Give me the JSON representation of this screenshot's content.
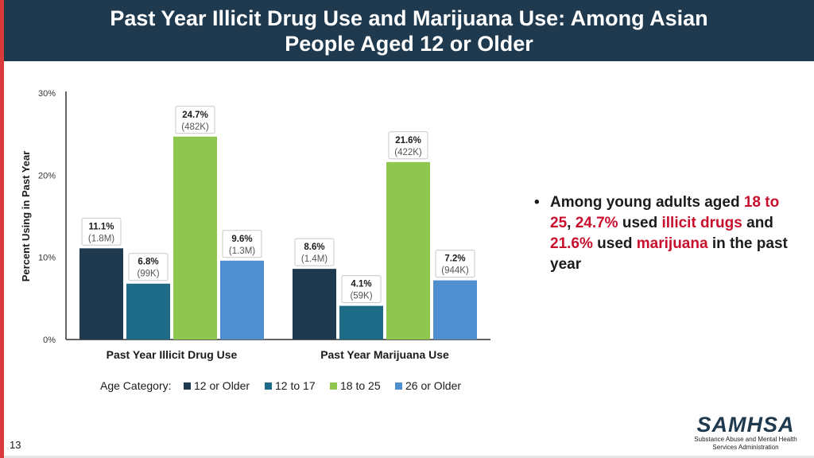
{
  "slide": {
    "title": "Past Year Illicit Drug Use and Marijuana Use: Among Asian People Aged 12 or Older",
    "page_number": "13",
    "logo": {
      "word": "SAMHSA",
      "subtitle": "Substance Abuse and Mental Health Services Administration"
    },
    "bullet": {
      "parts": [
        {
          "text": "Among young adults aged ",
          "highlight": false
        },
        {
          "text": "18 to 25",
          "highlight": true
        },
        {
          "text": ", ",
          "highlight": false
        },
        {
          "text": "24.7%",
          "highlight": true
        },
        {
          "text": " used ",
          "highlight": false
        },
        {
          "text": "illicit drugs",
          "highlight": true
        },
        {
          "text": " and ",
          "highlight": false
        },
        {
          "text": "21.6%",
          "highlight": true
        },
        {
          "text": " used ",
          "highlight": false
        },
        {
          "text": "marijuana",
          "highlight": true
        },
        {
          "text": " in the past year",
          "highlight": false
        }
      ]
    },
    "colors": {
      "header_bg": "#1f3a4f",
      "highlight": "#c8102e",
      "accent": "#d93a3a"
    }
  },
  "chart_data": {
    "type": "bar",
    "title": "",
    "ylabel": "Percent Using in Past Year",
    "ylim": [
      0,
      30
    ],
    "yticks": [
      0,
      10,
      20,
      30
    ],
    "ytick_labels": [
      "0%",
      "10%",
      "20%",
      "30%"
    ],
    "grid": false,
    "categories": [
      "Past Year Illicit Drug Use",
      "Past Year Marijuana Use"
    ],
    "legend_title": "Age Category:",
    "legend_position": "bottom",
    "series": [
      {
        "name": "12 or Older",
        "color": "#1f3a4f",
        "values": [
          11.1,
          8.6
        ],
        "labels": [
          "11.1%",
          "8.6%"
        ],
        "counts": [
          "(1.8M)",
          "(1.4M)"
        ]
      },
      {
        "name": "12 to 17",
        "color": "#1e6b87",
        "values": [
          6.8,
          4.1
        ],
        "labels": [
          "6.8%",
          "4.1%"
        ],
        "counts": [
          "(99K)",
          "(59K)"
        ]
      },
      {
        "name": "18 to 25",
        "color": "#8ec64f",
        "values": [
          24.7,
          21.6
        ],
        "labels": [
          "24.7%",
          "21.6%"
        ],
        "counts": [
          "(482K)",
          "(422K)"
        ]
      },
      {
        "name": "26 or Older",
        "color": "#4f8fcf",
        "values": [
          9.6,
          7.2
        ],
        "labels": [
          "9.6%",
          "7.2%"
        ],
        "counts": [
          "(1.3M)",
          "(944K)"
        ]
      }
    ]
  }
}
